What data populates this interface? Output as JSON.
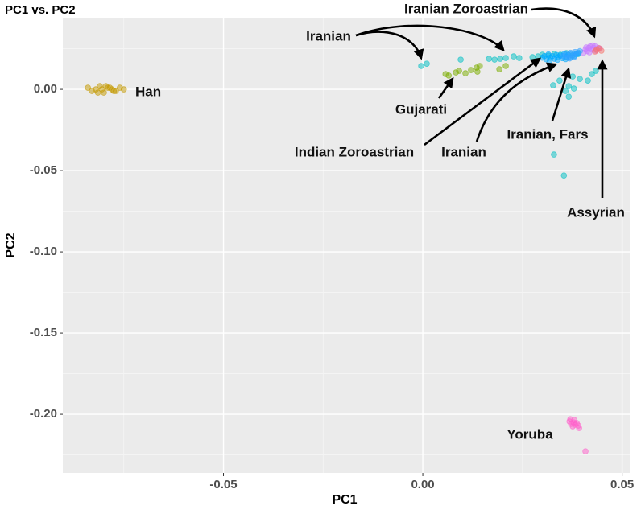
{
  "chart_data": {
    "type": "scatter",
    "title": "PC1 vs. PC2",
    "x_label": "PC1",
    "y_label": "PC2",
    "xlim": [
      -0.0903,
      0.0519
    ],
    "ylim": [
      -0.2361,
      0.0441
    ],
    "xticks": [
      -0.05,
      {
        "value": 0,
        "label": "0.00"
      },
      0.05
    ],
    "yticks": [
      {
        "value": 0,
        "label": "0.00"
      },
      -0.05,
      {
        "value": -0.1,
        "label": "-0.10"
      },
      -0.15,
      {
        "value": -0.2,
        "label": "-0.20"
      }
    ],
    "grid": true,
    "series": [
      {
        "name": "Han",
        "color": "#C49A00",
        "x": [
          -0.084,
          -0.083,
          -0.082,
          -0.081,
          -0.08,
          -0.079,
          -0.078,
          -0.077,
          -0.076,
          -0.075,
          -0.0815,
          -0.0795,
          -0.0775,
          -0.0805,
          -0.0785
        ],
        "values": [
          0.001,
          -0.001,
          0.0,
          0.002,
          -0.002,
          0.001,
          0.0,
          -0.001,
          0.001,
          0.0,
          -0.002,
          0.002,
          -0.001,
          0.0,
          0.001
        ]
      },
      {
        "name": "Gujarati",
        "color": "#7CAE00",
        "x": [
          0.0057,
          0.0065,
          0.0083,
          0.0091,
          0.0107,
          0.0121,
          0.0135,
          0.0143,
          0.0137,
          0.0192,
          0.0208
        ],
        "values": [
          0.0094,
          0.0085,
          0.0104,
          0.0114,
          0.0099,
          0.0119,
          0.0134,
          0.0144,
          0.0109,
          0.0124,
          0.0144
        ]
      },
      {
        "name": "Iranian",
        "color": "#00BFC4",
        "x": [
          -0.0004,
          0.001,
          0.0095,
          0.0166,
          0.018,
          0.0194,
          0.0208,
          0.0228,
          0.0242,
          0.0289,
          0.0275,
          0.03,
          0.0315,
          0.033,
          0.0345,
          0.036,
          0.0375,
          0.039,
          0.0329,
          0.0354,
          0.0366,
          0.0343,
          0.0379,
          0.0424,
          0.0434,
          0.0414,
          0.0358,
          0.0394,
          0.0327,
          0.0376,
          0.0366
        ],
        "values": [
          0.0144,
          0.0158,
          0.0183,
          0.0188,
          0.0183,
          0.0188,
          0.0193,
          0.0203,
          0.0193,
          0.0203,
          0.0198,
          0.0213,
          0.0208,
          0.0218,
          0.0213,
          0.0223,
          0.0208,
          0.0218,
          -0.0401,
          -0.053,
          -0.0045,
          0.0054,
          0.0005,
          0.0094,
          0.0114,
          0.0054,
          -0.001,
          0.0064,
          0.0025,
          0.0079,
          0.002
        ]
      },
      {
        "name": "Indian Zoroastrian",
        "color": "#00A9FF",
        "x": [
          0.03,
          0.0305,
          0.031,
          0.0315,
          0.032,
          0.0325,
          0.033,
          0.0335,
          0.034,
          0.0345,
          0.035,
          0.0355,
          0.036,
          0.0365,
          0.037,
          0.0375,
          0.038,
          0.0385,
          0.039,
          0.0318,
          0.0338,
          0.0358
        ],
        "values": [
          0.0195,
          0.0205,
          0.0185,
          0.0215,
          0.0195,
          0.0205,
          0.0188,
          0.0212,
          0.0198,
          0.0208,
          0.0192,
          0.0218,
          0.0202,
          0.0212,
          0.0196,
          0.0222,
          0.0206,
          0.0216,
          0.0226,
          0.0178,
          0.0182,
          0.0186
        ]
      },
      {
        "name": "Iranian Zoroastrian",
        "color": "#C77CFF",
        "x": [
          0.0403,
          0.0408,
          0.0412,
          0.0416,
          0.042,
          0.0424,
          0.0428,
          0.0432,
          0.0436,
          0.044,
          0.0444,
          0.0418,
          0.0426,
          0.0434,
          0.041
        ],
        "values": [
          0.0225,
          0.0245,
          0.0235,
          0.0255,
          0.0265,
          0.0245,
          0.0255,
          0.0265,
          0.0245,
          0.0255,
          0.025,
          0.0228,
          0.027,
          0.0238,
          0.0258
        ]
      },
      {
        "name": "Iranian, Fars",
        "color": "#35A2FF",
        "x": [
          0.0352,
          0.0358,
          0.0364,
          0.037,
          0.0376,
          0.0382,
          0.0388,
          0.0394,
          0.0368,
          0.038
        ],
        "values": [
          0.0205,
          0.0215,
          0.0195,
          0.0225,
          0.021,
          0.023,
          0.022,
          0.0235,
          0.019,
          0.02
        ]
      },
      {
        "name": "Assyrian",
        "color": "#F8766D",
        "x": [
          0.0436,
          0.0442,
          0.0448,
          0.0432
        ],
        "values": [
          0.0243,
          0.0253,
          0.0238,
          0.0233
        ]
      },
      {
        "name": "Yoruba",
        "color": "#FF61CC",
        "x": [
          0.0368,
          0.0372,
          0.0378,
          0.0382,
          0.0386,
          0.0376,
          0.039,
          0.037,
          0.038,
          0.0392,
          0.0408
        ],
        "values": [
          -0.2044,
          -0.2059,
          -0.205,
          -0.2064,
          -0.2054,
          -0.2074,
          -0.2069,
          -0.203,
          -0.2035,
          -0.2084,
          -0.2228
        ]
      }
    ],
    "annotations": [
      "Iranian"
    ]
  }
}
